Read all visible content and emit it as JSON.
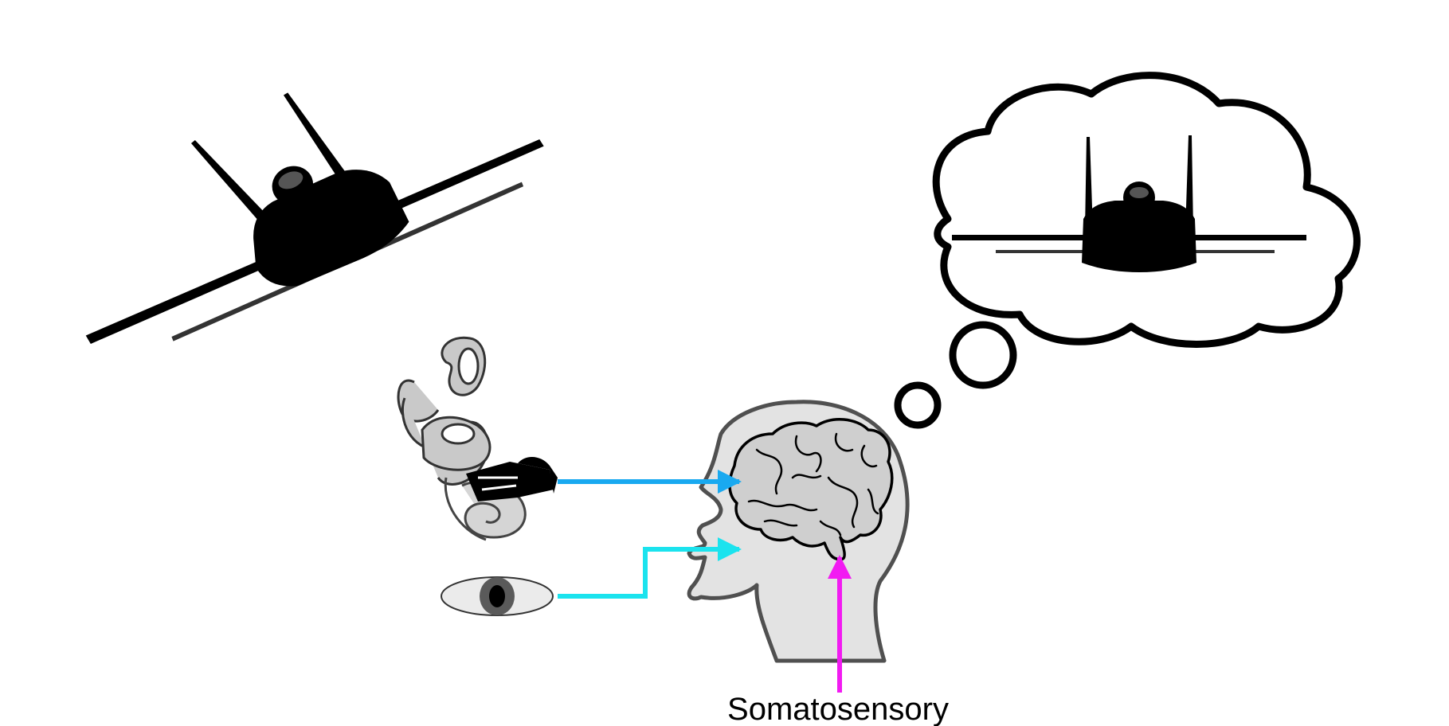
{
  "labels": {
    "somatosensory": "Somatosensory"
  },
  "colors": {
    "vestibular_arrow": "#19A9F0",
    "visual_arrow": "#1BE3EE",
    "somatosensory_arrow": "#F21BF2",
    "head_fill": "#E3E3E3",
    "brain_fill": "#CFCFCF",
    "ear_fill": "#C9C9C9",
    "eye_fill": "#EBEBEB",
    "outline": "#000000"
  }
}
